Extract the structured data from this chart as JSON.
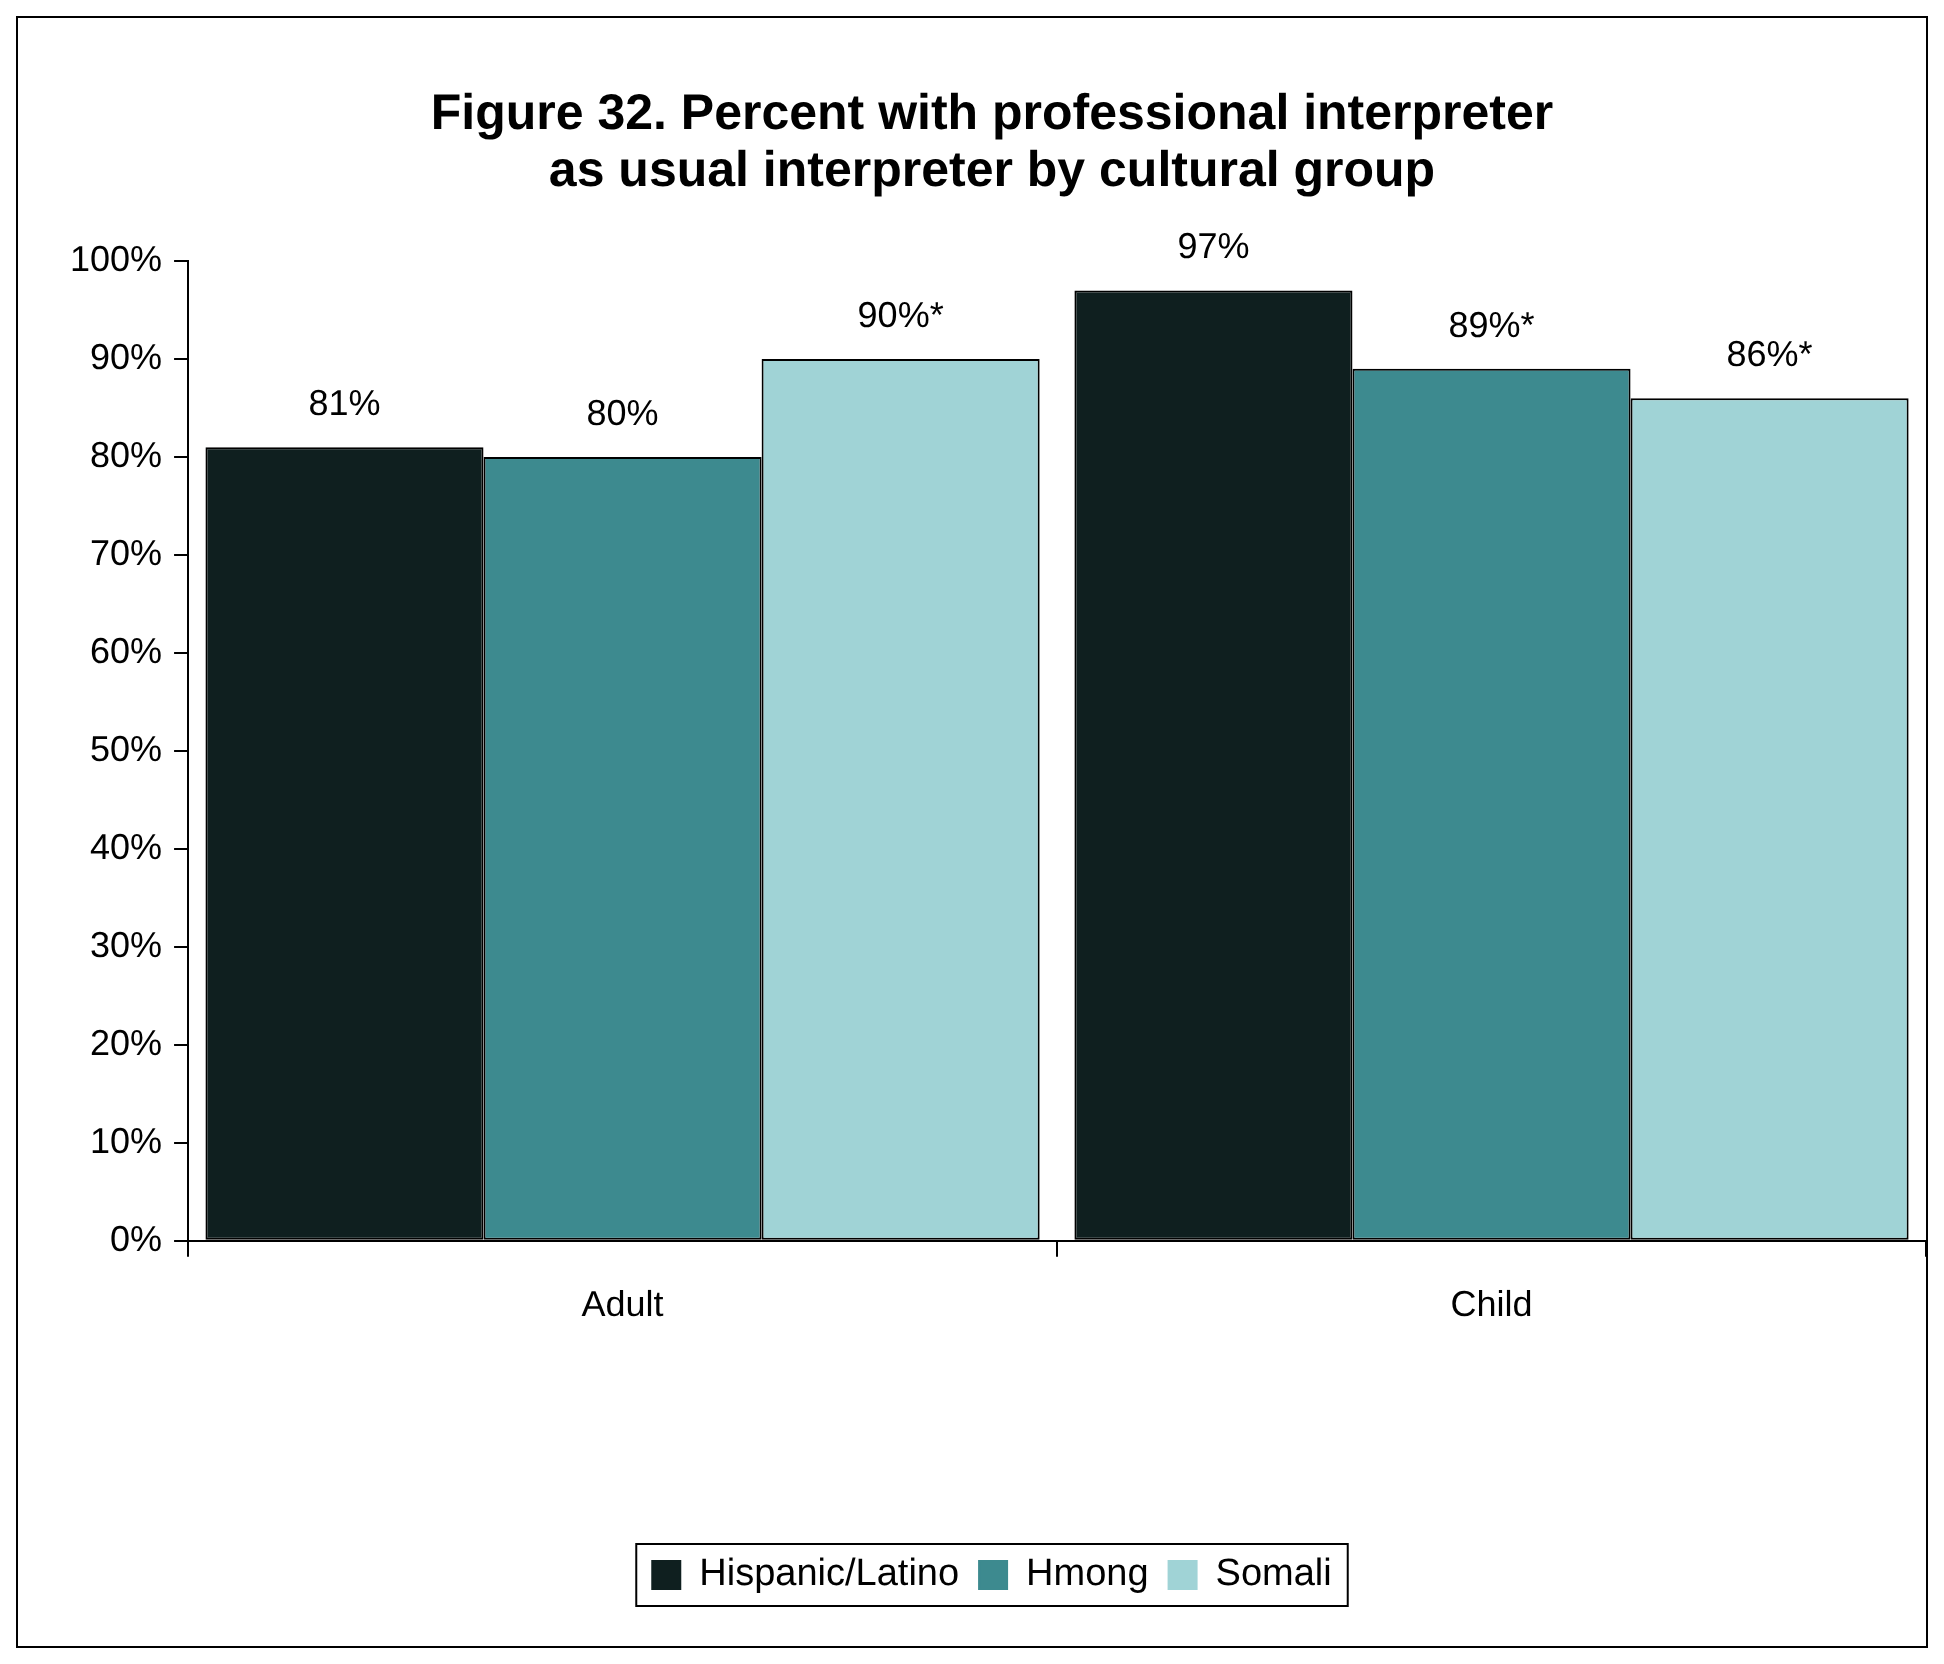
{
  "chart_data": {
    "type": "bar",
    "title": "Figure 32. Percent with professional interpreter\nas usual interpreter by cultural group",
    "categories": [
      "Adult",
      "Child"
    ],
    "series": [
      {
        "name": "Hispanic/Latino",
        "color": "#0f1f1f",
        "values": [
          81,
          97
        ],
        "value_labels": [
          "81%",
          "97%"
        ]
      },
      {
        "name": "Hmong",
        "color": "#3d8a8f",
        "values": [
          80,
          89
        ],
        "value_labels": [
          "80%",
          "89%*"
        ]
      },
      {
        "name": "Somali",
        "color": "#a0d3d6",
        "values": [
          90,
          86
        ],
        "value_labels": [
          "90%*",
          "86%*"
        ]
      }
    ],
    "ylim": [
      0,
      100
    ],
    "yticks": [
      {
        "value": 0,
        "label": "0%"
      },
      {
        "value": 10,
        "label": "10%"
      },
      {
        "value": 20,
        "label": "20%"
      },
      {
        "value": 30,
        "label": "30%"
      },
      {
        "value": 40,
        "label": "40%"
      },
      {
        "value": 50,
        "label": "50%"
      },
      {
        "value": 60,
        "label": "60%"
      },
      {
        "value": 70,
        "label": "70%"
      },
      {
        "value": 80,
        "label": "80%"
      },
      {
        "value": 90,
        "label": "90%"
      },
      {
        "value": 100,
        "label": "100%"
      }
    ],
    "grid": false,
    "legend": "bottom"
  }
}
